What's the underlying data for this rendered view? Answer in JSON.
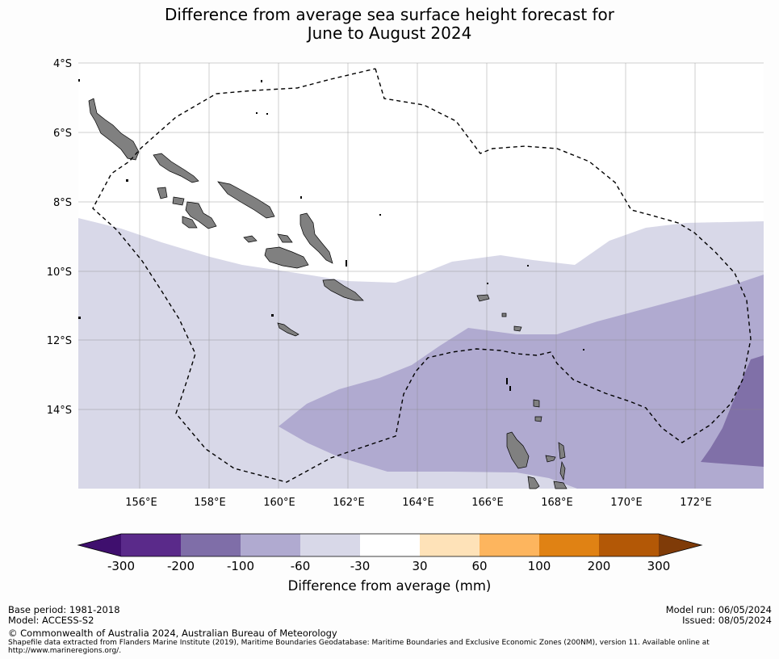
{
  "title": {
    "line1": "Difference from average sea surface height forecast for",
    "line2": "June to August 2024"
  },
  "map": {
    "lat_labels": [
      "4°S",
      "6°S",
      "8°S",
      "10°S",
      "12°S",
      "14°S"
    ],
    "lon_labels": [
      "156°E",
      "158°E",
      "160°E",
      "162°E",
      "164°E",
      "166°E",
      "168°E",
      "170°E",
      "172°E"
    ],
    "lat_range": [
      -16.3,
      -4.0
    ],
    "lon_range": [
      154.2,
      174.0
    ],
    "colors": {
      "land": "#808080",
      "band_light": "#d8d8e8",
      "band_mid": "#b0aad0",
      "band_dark": "#8070a8",
      "eez_line": "#000000"
    }
  },
  "colorbar": {
    "tick_labels": [
      "-300",
      "-200",
      "-100",
      "-60",
      "-30",
      "30",
      "60",
      "100",
      "200",
      "300"
    ],
    "colors": [
      "#3f0f6e",
      "#5a2a8a",
      "#7f6ea8",
      "#b0aad0",
      "#d8d8e8",
      "#ffffff",
      "#fee2b8",
      "#fdb55e",
      "#e08214",
      "#b35806",
      "#7f3b08"
    ],
    "title": "Difference from average (mm)"
  },
  "footer": {
    "base_period": "Base period: 1981-2018",
    "model": "Model: ACCESS-S2",
    "copyright": "© Commonwealth of Australia 2024, Australian Bureau of Meteorology",
    "shapefile_line1": "Shapefile data extracted from Flanders Marine Institute (2019), Maritime Boundaries Geodatabase: Maritime Boundaries and Exclusive Economic Zones (200NM), version 11. Available online at",
    "shapefile_line2": "http://www.marineregions.org/.",
    "model_run": "Model run: 06/05/2024",
    "issued": "Issued: 08/05/2024"
  }
}
